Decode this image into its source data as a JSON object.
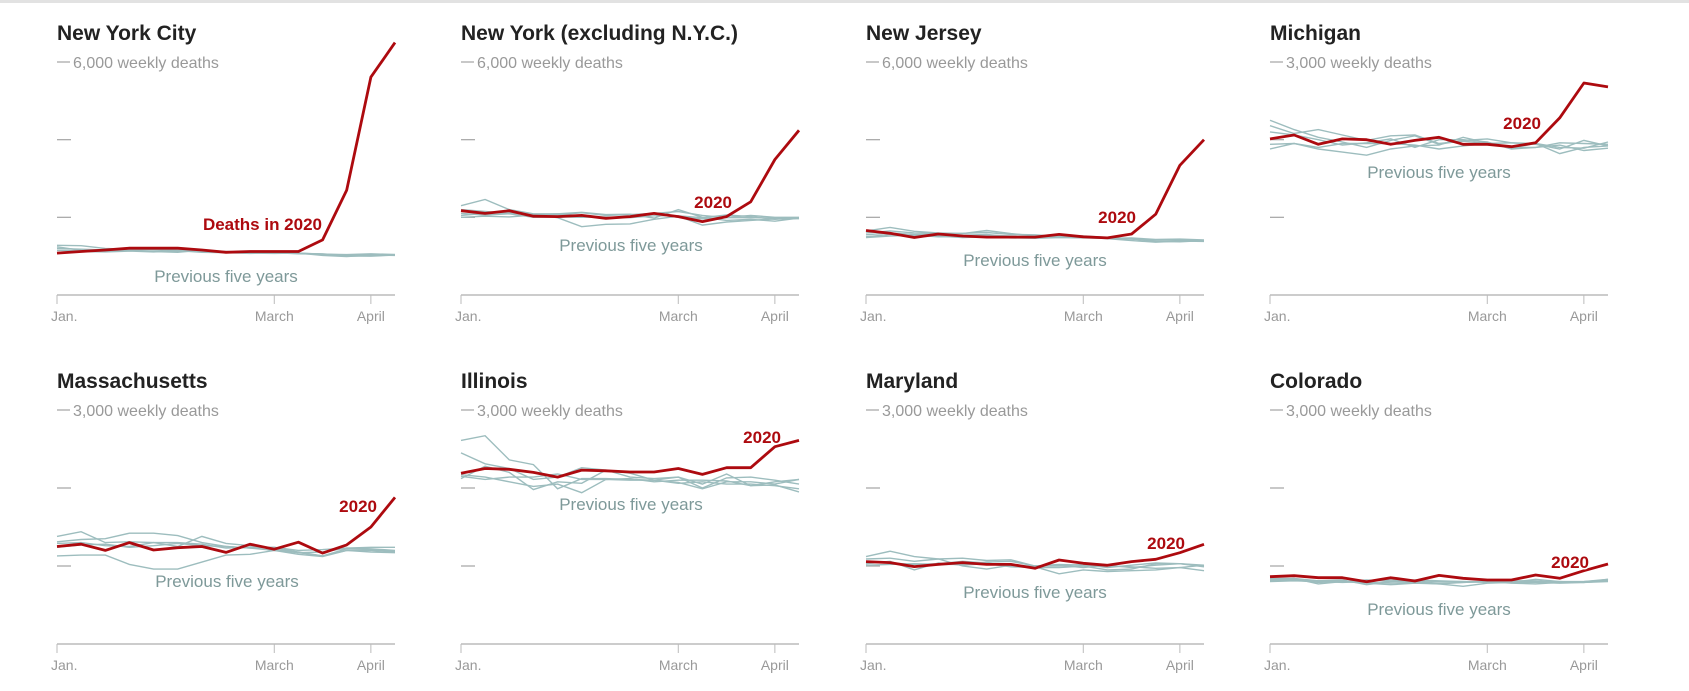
{
  "colors": {
    "current": "#ad0a0f",
    "previous": "#9dbdbe",
    "axis": "#bbbbbb"
  },
  "chart_data": [
    {
      "type": "line",
      "title": "New York City",
      "subtitle": "6,000 weekly deaths",
      "ymax": 6000,
      "yticks": [
        2000,
        4000
      ],
      "x_ticks": [
        {
          "label": "Jan.",
          "week": 0
        },
        {
          "label": "March",
          "week": 9
        },
        {
          "label": "April",
          "week": 13
        }
      ],
      "current_label": "Deaths in 2020",
      "previous_label": "Previous five years",
      "current": [
        1080,
        1120,
        1160,
        1205,
        1205,
        1205,
        1160,
        1100,
        1120,
        1120,
        1120,
        1420,
        2700,
        5610,
        6500
      ],
      "previous": [
        [
          1280,
          1270,
          1200,
          1180,
          1170,
          1150,
          1150,
          1120,
          1100,
          1090,
          1080,
          1040,
          1000,
          1010,
          1030
        ],
        [
          1200,
          1180,
          1160,
          1150,
          1200,
          1150,
          1120,
          1100,
          1090,
          1100,
          1080,
          1050,
          1030,
          1040,
          1040
        ],
        [
          1150,
          1140,
          1130,
          1140,
          1130,
          1120,
          1130,
          1110,
          1090,
          1080,
          1070,
          1060,
          1010,
          1000,
          1030
        ],
        [
          1240,
          1150,
          1120,
          1160,
          1120,
          1100,
          1160,
          1110,
          1080,
          1070,
          1080,
          1020,
          990,
          1030,
          1020
        ],
        [
          1100,
          1120,
          1110,
          1130,
          1110,
          1140,
          1100,
          1090,
          1070,
          1090,
          1060,
          1050,
          1040,
          1060,
          1040
        ]
      ]
    },
    {
      "type": "line",
      "title": "New York (excluding N.Y.C.)",
      "subtitle": "6,000 weekly deaths",
      "ymax": 6000,
      "yticks": [
        2000,
        4000
      ],
      "x_ticks": [
        {
          "label": "Jan.",
          "week": 0
        },
        {
          "label": "March",
          "week": 9
        },
        {
          "label": "April",
          "week": 13
        }
      ],
      "current_label": "2020",
      "previous_label": "Previous five years",
      "current": [
        2170,
        2100,
        2170,
        2030,
        2020,
        2050,
        1975,
        2020,
        2100,
        2020,
        1890,
        2020,
        2400,
        3490,
        4240
      ],
      "previous": [
        [
          2300,
          2460,
          2200,
          2090,
          2090,
          2030,
          2000,
          2000,
          2090,
          2000,
          1960,
          2000,
          2050,
          2000,
          2000
        ],
        [
          2200,
          2150,
          2100,
          2080,
          2060,
          2120,
          2050,
          2070,
          2100,
          2150,
          2050,
          1990,
          1990,
          1980,
          1970
        ],
        [
          2000,
          2030,
          2010,
          2060,
          2090,
          2130,
          2070,
          2080,
          1980,
          2200,
          2000,
          1920,
          1950,
          1900,
          1980
        ],
        [
          2050,
          2100,
          2120,
          2070,
          1990,
          1760,
          1820,
          1830,
          1950,
          2030,
          1800,
          1880,
          1920,
          1960,
          1970
        ],
        [
          2100,
          2060,
          2090,
          2000,
          2010,
          2000,
          2010,
          1990,
          2040,
          2040,
          1990,
          2060,
          2020,
          1950,
          1990
        ]
      ]
    },
    {
      "type": "line",
      "title": "New Jersey",
      "subtitle": "6,000 weekly deaths",
      "ymax": 6000,
      "yticks": [
        2000,
        4000
      ],
      "x_ticks": [
        {
          "label": "Jan.",
          "week": 0
        },
        {
          "label": "March",
          "week": 9
        },
        {
          "label": "April",
          "week": 13
        }
      ],
      "current_label": "2020",
      "previous_label": "Previous five years",
      "current": [
        1660,
        1590,
        1480,
        1570,
        1520,
        1490,
        1490,
        1490,
        1560,
        1500,
        1470,
        1570,
        2080,
        3340,
        4000
      ],
      "previous": [
        [
          1650,
          1740,
          1640,
          1600,
          1580,
          1660,
          1580,
          1520,
          1510,
          1520,
          1480,
          1440,
          1380,
          1370,
          1400
        ],
        [
          1550,
          1600,
          1560,
          1560,
          1540,
          1560,
          1500,
          1490,
          1500,
          1500,
          1480,
          1450,
          1410,
          1420,
          1410
        ],
        [
          1500,
          1560,
          1500,
          1520,
          1480,
          1500,
          1470,
          1460,
          1480,
          1470,
          1460,
          1470,
          1430,
          1440,
          1420
        ],
        [
          1600,
          1650,
          1600,
          1580,
          1590,
          1610,
          1560,
          1550,
          1510,
          1490,
          1450,
          1400,
          1360,
          1390,
          1380
        ],
        [
          1480,
          1520,
          1540,
          1500,
          1510,
          1540,
          1520,
          1500,
          1490,
          1480,
          1460,
          1440,
          1420,
          1410,
          1410
        ]
      ]
    },
    {
      "type": "line",
      "title": "Michigan",
      "subtitle": "3,000 weekly deaths",
      "ymax": 3000,
      "yticks": [
        1000,
        2000
      ],
      "x_ticks": [
        {
          "label": "Jan.",
          "week": 0
        },
        {
          "label": "March",
          "week": 9
        },
        {
          "label": "April",
          "week": 13
        }
      ],
      "current_label": "2020",
      "previous_label": "Previous five years",
      "current": [
        2010,
        2060,
        1940,
        2010,
        2000,
        1940,
        1990,
        2030,
        1940,
        1940,
        1910,
        1960,
        2280,
        2730,
        2680
      ],
      "previous": [
        [
          2250,
          2130,
          2030,
          1970,
          1900,
          1990,
          2050,
          1940,
          1990,
          2010,
          1960,
          1940,
          1880,
          1990,
          1920
        ],
        [
          2180,
          2080,
          2130,
          2060,
          1990,
          2050,
          2060,
          1950,
          1980,
          1950,
          1960,
          1950,
          1900,
          1890,
          1970
        ],
        [
          2100,
          2060,
          2000,
          1930,
          1960,
          2010,
          1900,
          2000,
          2000,
          1970,
          1880,
          1900,
          1960,
          1950,
          1940
        ],
        [
          1880,
          1950,
          1880,
          1840,
          1800,
          1880,
          1920,
          1930,
          2030,
          1960,
          1890,
          1950,
          1820,
          1900,
          1920
        ],
        [
          1940,
          1950,
          1900,
          1950,
          1950,
          1950,
          1930,
          1880,
          1920,
          1950,
          1900,
          1900,
          1930,
          1860,
          1890
        ]
      ]
    },
    {
      "type": "line",
      "title": "Massachusetts",
      "subtitle": "3,000 weekly deaths",
      "ymax": 3000,
      "yticks": [
        1000,
        2000
      ],
      "x_ticks": [
        {
          "label": "Jan.",
          "week": 0
        },
        {
          "label": "March",
          "week": 9
        },
        {
          "label": "April",
          "week": 13
        }
      ],
      "current_label": "2020",
      "previous_label": "Previous five years",
      "current": [
        1250,
        1280,
        1200,
        1300,
        1205,
        1235,
        1250,
        1175,
        1280,
        1215,
        1305,
        1165,
        1270,
        1500,
        1880
      ],
      "previous": [
        [
          1380,
          1440,
          1300,
          1310,
          1300,
          1250,
          1380,
          1290,
          1260,
          1220,
          1170,
          1180,
          1230,
          1220,
          1200
        ],
        [
          1310,
          1340,
          1350,
          1420,
          1420,
          1390,
          1300,
          1250,
          1230,
          1240,
          1200,
          1210,
          1230,
          1240,
          1240
        ],
        [
          1130,
          1140,
          1140,
          1020,
          960,
          960,
          1050,
          1140,
          1150,
          1200,
          1150,
          1120,
          1200,
          1180,
          1170
        ],
        [
          1290,
          1300,
          1260,
          1250,
          1300,
          1300,
          1280,
          1230,
          1240,
          1240,
          1180,
          1130,
          1200,
          1200,
          1180
        ],
        [
          1240,
          1270,
          1280,
          1240,
          1260,
          1290,
          1260,
          1250,
          1230,
          1200,
          1170,
          1130,
          1220,
          1210,
          1190
        ]
      ]
    },
    {
      "type": "line",
      "title": "Illinois",
      "subtitle": "3,000 weekly deaths",
      "ymax": 3000,
      "yticks": [
        1000,
        2000
      ],
      "x_ticks": [
        {
          "label": "Jan.",
          "week": 0
        },
        {
          "label": "March",
          "week": 9
        },
        {
          "label": "April",
          "week": 13
        }
      ],
      "current_label": "2020",
      "previous_label": "Previous five years",
      "current": [
        2190,
        2250,
        2240,
        2200,
        2140,
        2230,
        2220,
        2205,
        2205,
        2250,
        2175,
        2260,
        2260,
        2530,
        2610
      ],
      "previous": [
        [
          2610,
          2670,
          2360,
          2300,
          1990,
          2120,
          2120,
          2110,
          2100,
          2060,
          2080,
          2050,
          2050,
          2030,
          1990
        ],
        [
          2450,
          2310,
          2250,
          2110,
          2140,
          2260,
          2230,
          2190,
          2100,
          2140,
          2050,
          2180,
          2030,
          2040,
          1950
        ],
        [
          2120,
          2280,
          2200,
          1980,
          2080,
          2060,
          2230,
          2140,
          2120,
          2140,
          2000,
          2130,
          2140,
          2100,
          2050
        ],
        [
          2150,
          2110,
          2140,
          2140,
          2180,
          2110,
          2110,
          2120,
          2080,
          2100,
          2100,
          2090,
          2030,
          2080,
          2110
        ],
        [
          2170,
          2140,
          2080,
          2020,
          2050,
          1940,
          2110,
          2100,
          2100,
          2070,
          1990,
          2080,
          2080,
          2050,
          2110
        ]
      ]
    },
    {
      "type": "line",
      "title": "Maryland",
      "subtitle": "3,000 weekly deaths",
      "ymax": 3000,
      "yticks": [
        1000,
        2000
      ],
      "x_ticks": [
        {
          "label": "Jan.",
          "week": 0
        },
        {
          "label": "March",
          "week": 9
        },
        {
          "label": "April",
          "week": 13
        }
      ],
      "current_label": "2020",
      "previous_label": "Previous five years",
      "current": [
        1056,
        1043,
        992,
        1021,
        1043,
        1021,
        1021,
        970,
        1077,
        1034,
        1009,
        1056,
        1086,
        1171,
        1278
      ],
      "previous": [
        [
          1120,
          1190,
          1120,
          1090,
          1000,
          960,
          1010,
          990,
          900,
          950,
          930,
          940,
          950,
          980,
          1010
        ],
        [
          1090,
          1100,
          1060,
          1090,
          1100,
          1070,
          1080,
          1000,
          1000,
          1020,
          980,
          1010,
          1040,
          1030,
          1010
        ],
        [
          1030,
          1060,
          950,
          1040,
          1010,
          1030,
          990,
          980,
          980,
          1000,
          950,
          960,
          1030,
          1030,
          990
        ],
        [
          1010,
          1020,
          1030,
          1020,
          1020,
          1050,
          1060,
          1000,
          1020,
          1010,
          1000,
          990,
          970,
          980,
          940
        ],
        [
          1050,
          1040,
          1020,
          1030,
          1060,
          1040,
          1000,
          1000,
          1010,
          980,
          1010,
          980,
          1010,
          1030,
          1000
        ]
      ]
    },
    {
      "type": "line",
      "title": "Colorado",
      "subtitle": "3,000 weekly deaths",
      "ymax": 3000,
      "yticks": [
        1000,
        2000
      ],
      "x_ticks": [
        {
          "label": "Jan.",
          "week": 0
        },
        {
          "label": "March",
          "week": 9
        },
        {
          "label": "April",
          "week": 13
        }
      ],
      "current_label": "2020",
      "previous_label": "Previous five years",
      "current": [
        863,
        876,
        850,
        850,
        799,
        850,
        808,
        880,
        842,
        820,
        820,
        885,
        842,
        940,
        1026
      ],
      "previous": [
        [
          820,
          840,
          770,
          800,
          820,
          800,
          820,
          810,
          800,
          800,
          790,
          830,
          800,
          800,
          830
        ],
        [
          840,
          840,
          810,
          820,
          760,
          800,
          800,
          780,
          790,
          800,
          810,
          810,
          790,
          800,
          820
        ],
        [
          810,
          820,
          790,
          800,
          780,
          760,
          780,
          770,
          740,
          780,
          790,
          790,
          780,
          790,
          800
        ],
        [
          820,
          830,
          810,
          810,
          790,
          780,
          790,
          770,
          790,
          800,
          780,
          770,
          790,
          790,
          810
        ],
        [
          800,
          810,
          800,
          790,
          800,
          820,
          810,
          800,
          800,
          790,
          790,
          800,
          800,
          790,
          830
        ]
      ]
    }
  ]
}
